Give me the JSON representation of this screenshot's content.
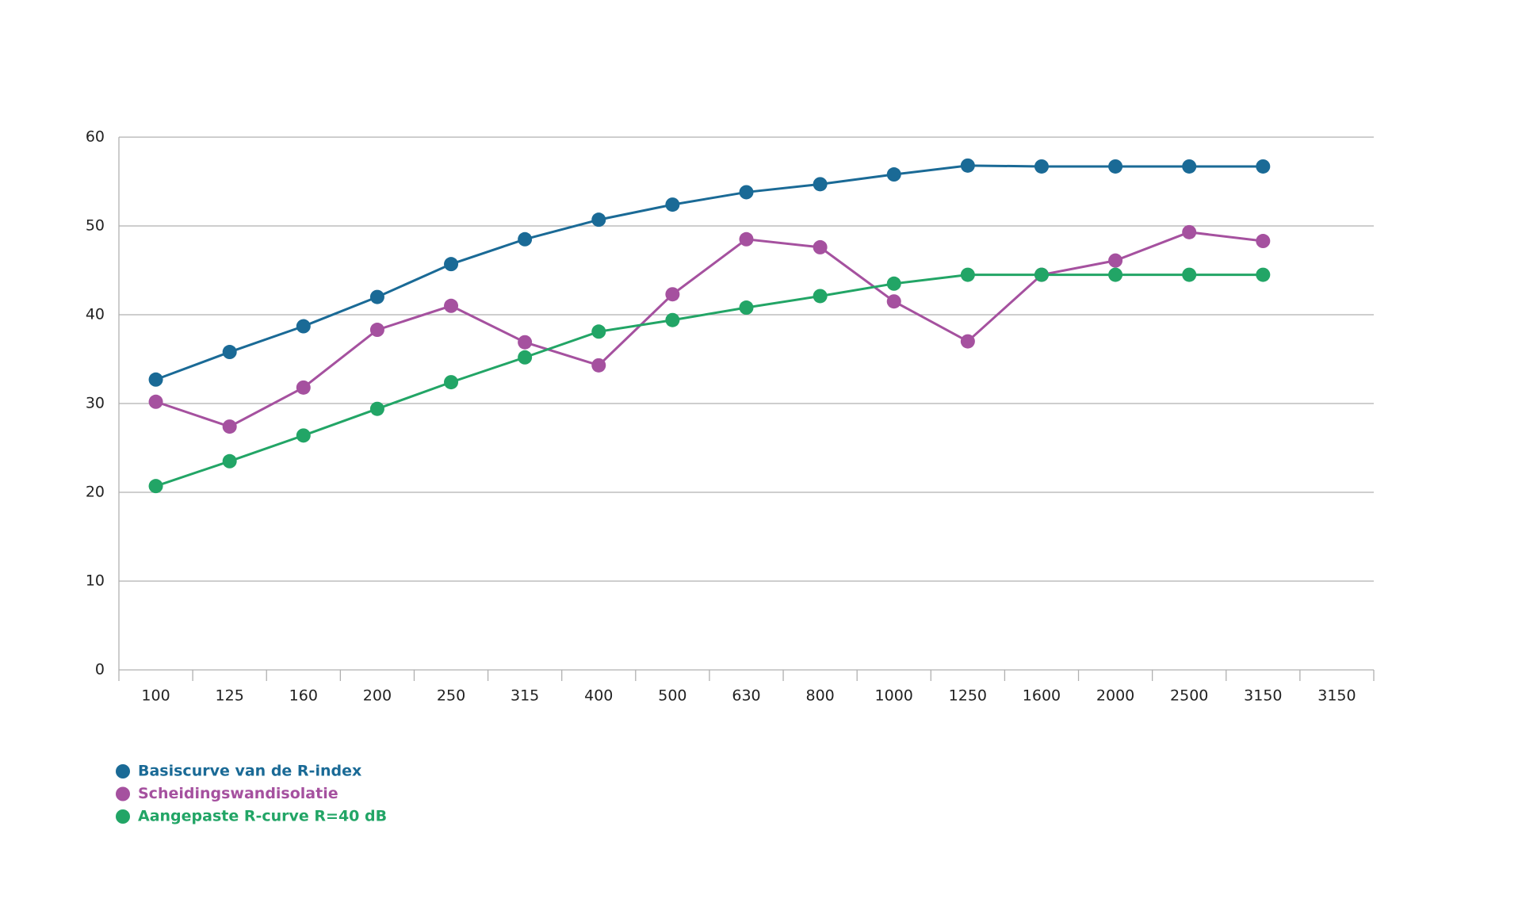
{
  "chart_data": {
    "type": "line",
    "categories": [
      "100",
      "125",
      "160",
      "200",
      "250",
      "315",
      "400",
      "500",
      "630",
      "800",
      "1000",
      "1250",
      "1600",
      "2000",
      "2500",
      "3150",
      "3150"
    ],
    "series": [
      {
        "name": "Basiscurve van de R-index",
        "color": "#1a6a96",
        "values": [
          32.7,
          35.8,
          38.7,
          42,
          45.7,
          48.5,
          50.7,
          52.4,
          53.8,
          54.7,
          55.8,
          56.8,
          56.7,
          56.7,
          56.7,
          56.7,
          null
        ]
      },
      {
        "name": "Scheidingswandisolatie",
        "color": "#a5519f",
        "values": [
          30.2,
          27.4,
          31.8,
          38.3,
          41,
          36.9,
          34.3,
          42.3,
          48.5,
          47.6,
          41.5,
          37,
          44.5,
          46.1,
          49.3,
          48.3,
          null
        ]
      },
      {
        "name": "Aangepaste R-curve R=40 dB",
        "color": "#22a566",
        "values": [
          20.7,
          23.5,
          26.4,
          29.4,
          32.4,
          35.2,
          38.1,
          39.4,
          40.8,
          42.1,
          43.5,
          44.5,
          44.5,
          44.5,
          44.5,
          44.5,
          null
        ]
      }
    ],
    "ylim": [
      0,
      60
    ],
    "yticks": [
      0,
      10,
      20,
      30,
      40,
      50,
      60
    ],
    "grid": true,
    "legend": "bottom-left"
  }
}
